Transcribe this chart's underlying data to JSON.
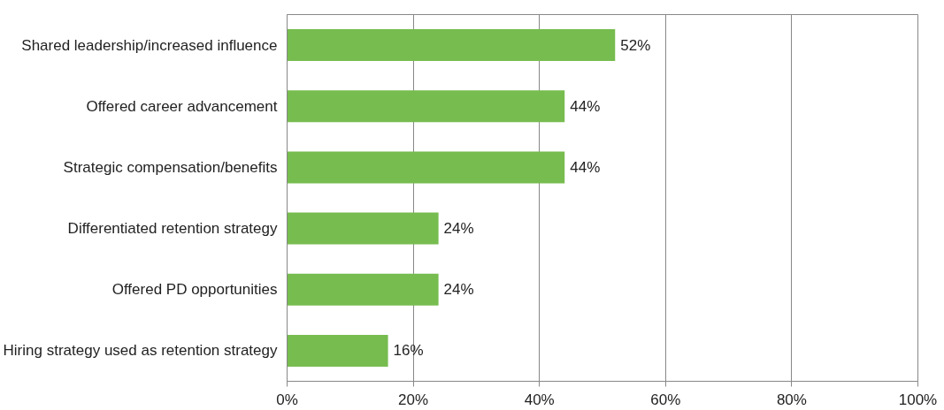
{
  "chart_data": {
    "type": "bar",
    "orientation": "horizontal",
    "categories": [
      "Shared leadership/increased influence",
      "Offered career advancement",
      "Strategic compensation/benefits",
      "Differentiated retention strategy",
      "Offered PD opportunities",
      "Hiring strategy used as retention strategy"
    ],
    "values": [
      52,
      44,
      44,
      24,
      24,
      16
    ],
    "value_labels": [
      "52%",
      "44%",
      "44%",
      "24%",
      "24%",
      "16%"
    ],
    "color": "#77bc4f",
    "xlim": [
      0,
      100
    ],
    "xticks": [
      {
        "value": 0,
        "label": "0%"
      },
      {
        "value": 20,
        "label": "20%"
      },
      {
        "value": 40,
        "label": "40%"
      },
      {
        "value": 60,
        "label": "60%"
      },
      {
        "value": 80,
        "label": "80%"
      },
      {
        "value": 100,
        "label": "100%"
      }
    ],
    "grid": "x"
  }
}
